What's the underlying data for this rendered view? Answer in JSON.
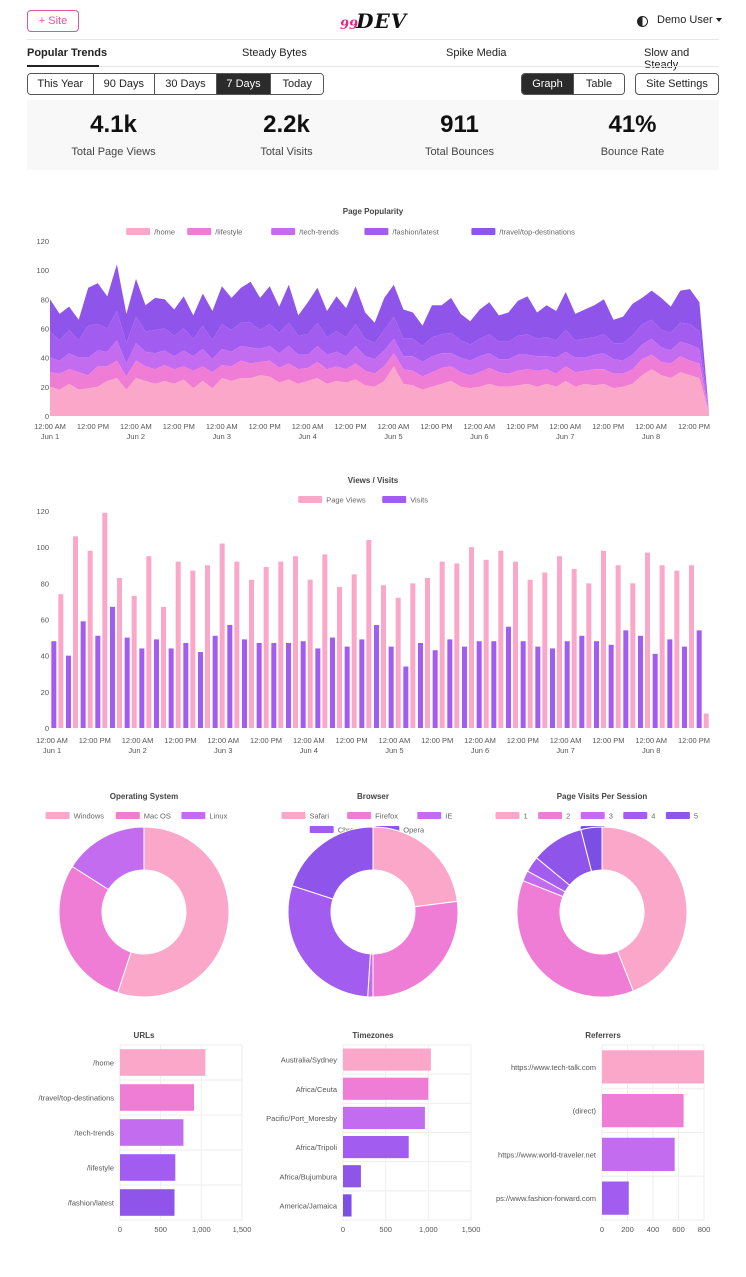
{
  "header": {
    "add_site_label": "+ Site",
    "logo_number": "99",
    "logo_text": "DEV",
    "user_label": "Demo User"
  },
  "site_tabs": [
    {
      "label": "Popular Trends",
      "active": true
    },
    {
      "label": "Steady Bytes",
      "active": false
    },
    {
      "label": "Spike Media",
      "active": false
    },
    {
      "label": "Slow and Steady",
      "active": false
    }
  ],
  "range_buttons": [
    {
      "label": "This Year",
      "active": false
    },
    {
      "label": "90 Days",
      "active": false
    },
    {
      "label": "30 Days",
      "active": false
    },
    {
      "label": "7 Days",
      "active": true
    },
    {
      "label": "Today",
      "active": false
    }
  ],
  "view_buttons": [
    {
      "label": "Graph",
      "active": true
    },
    {
      "label": "Table",
      "active": false
    }
  ],
  "site_settings_label": "Site Settings",
  "stats": [
    {
      "value": "4.1k",
      "label": "Total Page Views"
    },
    {
      "value": "2.2k",
      "label": "Total Visits"
    },
    {
      "value": "911",
      "label": "Total Bounces"
    },
    {
      "value": "41%",
      "label": "Bounce Rate"
    }
  ],
  "colors": {
    "pink1": "#fba7c9",
    "pink2": "#f07dd5",
    "purple3": "#c46cf0",
    "purple4": "#a35cf0",
    "purple5": "#8f55ea",
    "purple6": "#7b4fe3"
  },
  "time_axis": {
    "ticks": [
      [
        "12:00 AM",
        "Jun 1"
      ],
      [
        "12:00 PM",
        ""
      ],
      [
        "12:00 AM",
        "Jun 2"
      ],
      [
        "12:00 PM",
        ""
      ],
      [
        "12:00 AM",
        "Jun 3"
      ],
      [
        "12:00 PM",
        ""
      ],
      [
        "12:00 AM",
        "Jun 4"
      ],
      [
        "12:00 PM",
        ""
      ],
      [
        "12:00 AM",
        "Jun 5"
      ],
      [
        "12:00 PM",
        ""
      ],
      [
        "12:00 AM",
        "Jun 6"
      ],
      [
        "12:00 PM",
        ""
      ],
      [
        "12:00 AM",
        "Jun 7"
      ],
      [
        "12:00 PM",
        ""
      ],
      [
        "12:00 AM",
        "Jun 8"
      ],
      [
        "12:00 PM",
        ""
      ]
    ]
  },
  "chart_data": [
    {
      "type": "area",
      "title": "Page Popularity",
      "stacked": true,
      "ylim": [
        0,
        120
      ],
      "yticks": [
        0,
        20,
        40,
        60,
        80,
        100,
        120
      ],
      "legend_position": "top",
      "series": [
        {
          "name": "/home",
          "values": [
            20,
            18,
            22,
            18,
            19,
            20,
            24,
            26,
            18,
            26,
            24,
            22,
            24,
            22,
            25,
            19,
            24,
            19,
            26,
            24,
            26,
            26,
            28,
            27,
            23,
            25,
            22,
            24,
            26,
            22,
            24,
            23,
            25,
            21,
            20,
            24,
            34,
            22,
            21,
            18,
            20,
            22,
            24,
            20,
            19,
            20,
            22,
            20,
            20,
            21,
            22,
            20,
            22,
            20,
            24,
            20,
            22,
            21,
            22,
            19,
            20,
            22,
            28,
            32,
            28,
            26,
            30,
            28,
            26,
            2
          ]
        },
        {
          "name": "/lifestyle",
          "values": [
            10,
            11,
            10,
            12,
            9,
            14,
            10,
            12,
            9,
            12,
            10,
            10,
            11,
            10,
            9,
            12,
            10,
            11,
            9,
            10,
            12,
            10,
            9,
            11,
            10,
            11,
            10,
            9,
            11,
            10,
            10,
            9,
            11,
            10,
            9,
            10,
            9,
            10,
            10,
            9,
            10,
            11,
            10,
            10,
            9,
            10,
            11,
            10,
            9,
            10,
            10,
            11,
            10,
            9,
            10,
            10,
            9,
            11,
            10,
            10,
            9,
            10,
            11,
            10,
            9,
            10,
            11,
            10,
            10,
            0
          ]
        },
        {
          "name": "/tech-trends",
          "values": [
            10,
            9,
            11,
            10,
            12,
            11,
            10,
            14,
            9,
            12,
            10,
            11,
            10,
            9,
            11,
            10,
            12,
            9,
            11,
            10,
            10,
            11,
            9,
            10,
            10,
            12,
            10,
            9,
            11,
            10,
            10,
            9,
            12,
            10,
            10,
            11,
            10,
            9,
            10,
            10,
            11,
            10,
            9,
            10,
            10,
            11,
            10,
            9,
            10,
            11,
            10,
            10,
            9,
            11,
            10,
            10,
            9,
            10,
            11,
            10,
            9,
            10,
            10,
            11,
            10,
            9,
            10,
            11,
            10,
            0
          ]
        },
        {
          "name": "/fashion/latest",
          "values": [
            18,
            14,
            16,
            12,
            22,
            18,
            16,
            20,
            14,
            18,
            14,
            16,
            15,
            14,
            15,
            12,
            16,
            13,
            17,
            15,
            16,
            17,
            13,
            15,
            14,
            16,
            13,
            14,
            16,
            12,
            14,
            13,
            15,
            12,
            11,
            14,
            15,
            12,
            12,
            11,
            13,
            13,
            14,
            12,
            11,
            12,
            13,
            12,
            12,
            13,
            14,
            12,
            13,
            12,
            15,
            12,
            13,
            12,
            13,
            11,
            12,
            13,
            14,
            13,
            12,
            12,
            13,
            14,
            12,
            0
          ]
        },
        {
          "name": "/travel/top-destinations",
          "values": [
            22,
            18,
            16,
            14,
            26,
            28,
            22,
            32,
            20,
            26,
            18,
            22,
            20,
            18,
            22,
            16,
            22,
            20,
            26,
            22,
            24,
            28,
            22,
            26,
            18,
            26,
            14,
            22,
            24,
            18,
            24,
            20,
            26,
            18,
            14,
            22,
            22,
            20,
            18,
            14,
            22,
            20,
            24,
            18,
            16,
            20,
            22,
            18,
            20,
            24,
            26,
            18,
            22,
            20,
            26,
            18,
            20,
            22,
            24,
            16,
            18,
            22,
            18,
            20,
            22,
            18,
            22,
            24,
            20,
            0
          ]
        }
      ]
    },
    {
      "type": "bar",
      "title": "Views / Visits",
      "ylim": [
        0,
        120
      ],
      "yticks": [
        0,
        20,
        40,
        60,
        80,
        100,
        120
      ],
      "legend_position": "top",
      "series": [
        {
          "name": "Page Views",
          "values": [
            74,
            106,
            98,
            119,
            83,
            73,
            95,
            67,
            92,
            87,
            90,
            102,
            92,
            82,
            89,
            92,
            95,
            82,
            96,
            78,
            85,
            104,
            79,
            72,
            80,
            83,
            92,
            91,
            100,
            93,
            98,
            92,
            82,
            86,
            95,
            88,
            80,
            98,
            90,
            80,
            97,
            90,
            87,
            90,
            8
          ]
        },
        {
          "name": "Visits",
          "values": [
            48,
            40,
            59,
            51,
            67,
            50,
            44,
            49,
            44,
            47,
            42,
            51,
            57,
            49,
            47,
            47,
            47,
            48,
            44,
            50,
            45,
            49,
            57,
            45,
            34,
            47,
            43,
            49,
            45,
            48,
            48,
            56,
            48,
            45,
            44,
            48,
            51,
            48,
            46,
            54,
            51,
            41,
            49,
            45,
            54
          ]
        }
      ]
    },
    {
      "type": "pie",
      "title": "Operating System",
      "donut": true,
      "labels": [
        "Windows",
        "Mac OS",
        "Linux"
      ],
      "values": [
        55,
        29,
        16
      ]
    },
    {
      "type": "pie",
      "title": "Browser",
      "donut": true,
      "labels": [
        "Safari",
        "Firefox",
        "IE",
        "Chrome",
        "Opera"
      ],
      "values": [
        23,
        27,
        1,
        29,
        20
      ]
    },
    {
      "type": "pie",
      "title": "Page Visits Per Session",
      "donut": true,
      "labels": [
        "1",
        "2",
        "3",
        "4",
        "5",
        "6"
      ],
      "values": [
        44,
        37,
        2,
        3,
        10,
        4
      ]
    },
    {
      "type": "bar",
      "orientation": "horizontal",
      "title": "URLs",
      "categories": [
        "/home",
        "/travel/top-destinations",
        "/tech-trends",
        "/lifestyle",
        "/fashion/latest"
      ],
      "values": [
        1050,
        910,
        780,
        680,
        670
      ],
      "xlim": [
        0,
        1500
      ],
      "xticks": [
        "0",
        "500",
        "1,000",
        "1,500"
      ]
    },
    {
      "type": "bar",
      "orientation": "horizontal",
      "title": "Timezones",
      "categories": [
        "Australia/Sydney",
        "Africa/Ceuta",
        "Pacific/Port_Moresby",
        "Africa/Tripoli",
        "Africa/Bujumbura",
        "America/Jamaica"
      ],
      "values": [
        1030,
        1000,
        960,
        770,
        210,
        100
      ],
      "xlim": [
        0,
        1500
      ],
      "xticks": [
        "0",
        "500",
        "1,000",
        "1,500"
      ]
    },
    {
      "type": "bar",
      "orientation": "horizontal",
      "title": "Referrers",
      "categories": [
        "https://www.tech-talk.com",
        "(direct)",
        "https://www.world-traveler.net",
        "ps://www.fashion-forward.com"
      ],
      "values": [
        800,
        640,
        570,
        210
      ],
      "xlim": [
        0,
        800
      ],
      "xticks": [
        "0",
        "200",
        "400",
        "600",
        "800"
      ]
    }
  ]
}
